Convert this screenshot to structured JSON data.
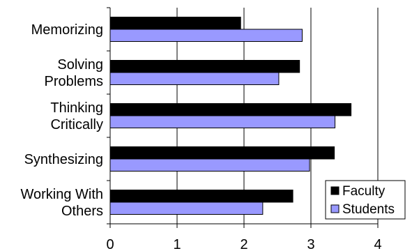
{
  "chart_data": {
    "type": "bar",
    "orientation": "horizontal",
    "categories": [
      [
        "Memorizing"
      ],
      [
        "Solving",
        "Problems"
      ],
      [
        "Thinking",
        "Critically"
      ],
      [
        "Synthesizing"
      ],
      [
        "Working With",
        "Others"
      ]
    ],
    "series": [
      {
        "name": "Faculty",
        "color": "#000000",
        "values": [
          1.95,
          2.83,
          3.6,
          3.35,
          2.73
        ]
      },
      {
        "name": "Students",
        "color": "#9999ff",
        "values": [
          2.87,
          2.52,
          3.36,
          2.98,
          2.28
        ]
      }
    ],
    "xlim": [
      0,
      4
    ],
    "xticks": [
      "0",
      "1",
      "2",
      "3",
      "4"
    ],
    "grid": true,
    "legend_position": "bottom-right"
  }
}
